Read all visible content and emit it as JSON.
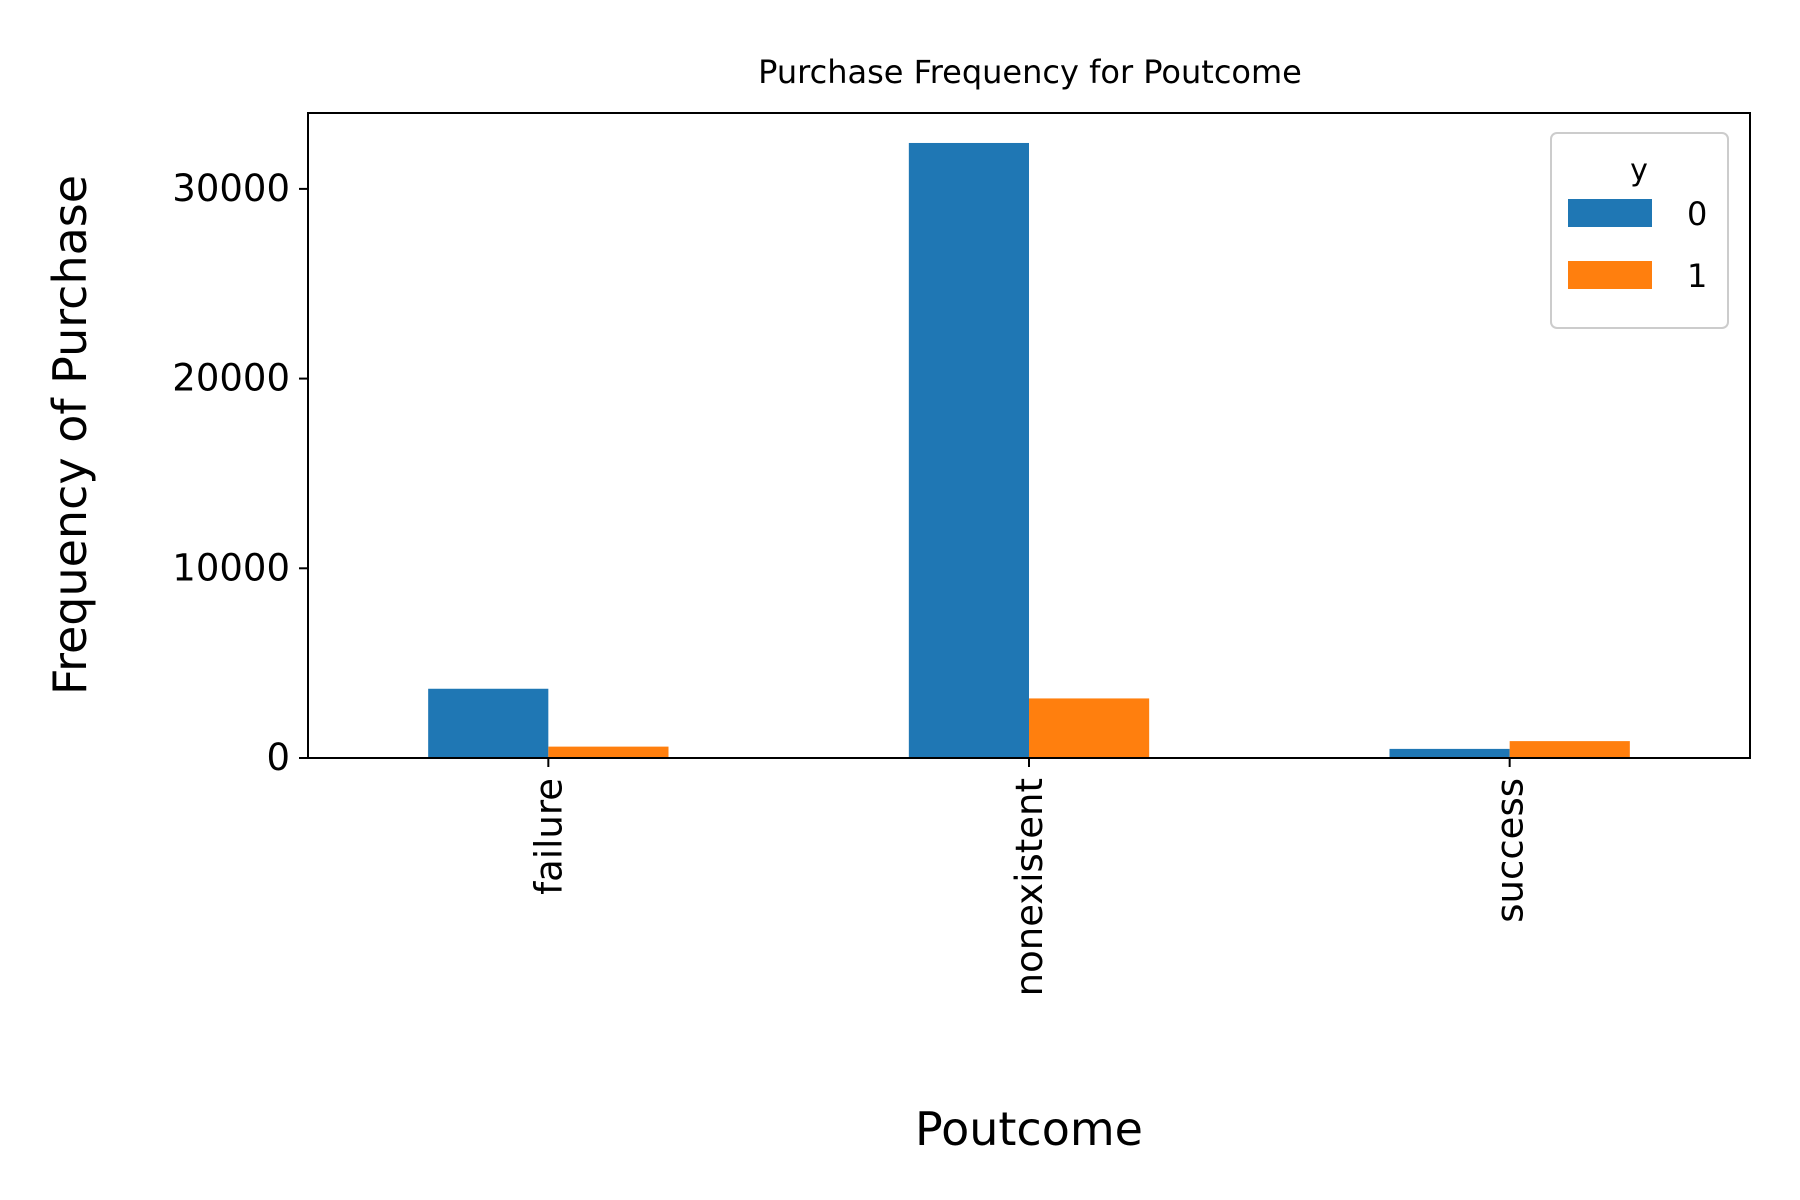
{
  "chart_data": {
    "type": "bar",
    "title": "Purchase Frequency for Poutcome",
    "xlabel": "Poutcome",
    "ylabel": "Frequency of Purchase",
    "categories": [
      "failure",
      "nonexistent",
      "success"
    ],
    "series": [
      {
        "name": "0",
        "color": "#1f77b4",
        "values": [
          3650,
          32420,
          480
        ]
      },
      {
        "name": "1",
        "color": "#ff7f0e",
        "values": [
          600,
          3140,
          890
        ]
      }
    ],
    "ylim": [
      0,
      34000
    ],
    "yticks": [
      0,
      10000,
      20000,
      30000
    ],
    "ytick_labels": [
      "0",
      "10000",
      "20000",
      "30000"
    ],
    "legend": {
      "title": "y",
      "position": "top-right"
    },
    "grid": false
  }
}
